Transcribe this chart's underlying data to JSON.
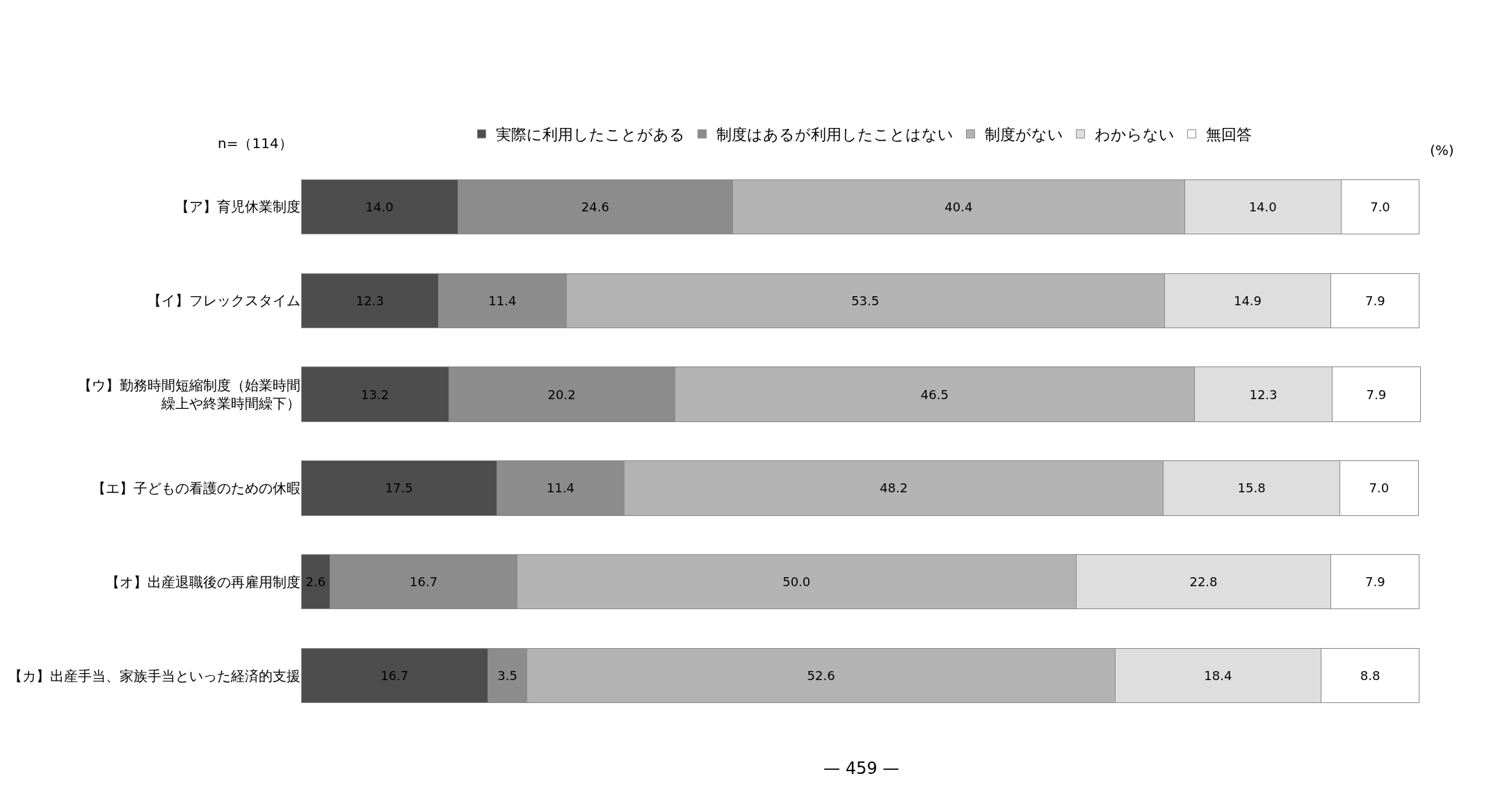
{
  "chart_data": {
    "type": "bar",
    "orientation": "horizontal",
    "stacked": true,
    "legend": "top",
    "tick_labels": "y",
    "xlim": [
      0,
      100.2
    ],
    "categories": [
      "【ア】育児休業制度",
      "【イ】フレックスタイム",
      "【ウ】勤務時間短縮制度（始業時間繰上や終業時間繰下）",
      "【エ】子どもの看護のための休暇",
      "【オ】出産退職後の再雇用制度",
      "【カ】出産手当、家族手当といった経済的支援"
    ],
    "series": [
      {
        "name": "実際に利用したことがある",
        "color": "#4d4d4d",
        "values": [
          14.0,
          12.3,
          13.2,
          17.5,
          2.6,
          16.7
        ],
        "value_labels": [
          "14.0",
          "12.3",
          "13.2",
          "17.5",
          "2.6",
          "16.7"
        ]
      },
      {
        "name": "制度はあるが利用したことはない",
        "color": "#8c8c8c",
        "values": [
          24.6,
          11.4,
          20.2,
          11.4,
          16.7,
          3.5
        ],
        "value_labels": [
          "24.6",
          "11.4",
          "20.2",
          "11.4",
          "16.7",
          "3.5"
        ]
      },
      {
        "name": "制度がない",
        "color": "#b3b3b3",
        "values": [
          40.4,
          53.5,
          46.5,
          48.2,
          50.0,
          52.6
        ],
        "value_labels": [
          "40.4",
          "53.5",
          "46.5",
          "48.2",
          "50.0",
          "52.6"
        ]
      },
      {
        "name": "わからない",
        "color": "#dedede",
        "values": [
          14.0,
          14.9,
          12.3,
          15.8,
          22.8,
          18.4
        ],
        "value_labels": [
          "14.0",
          "14.9",
          "12.3",
          "15.8",
          "22.8",
          "18.4"
        ]
      },
      {
        "name": "無回答",
        "color": "#ffffff",
        "values": [
          7.0,
          7.9,
          7.9,
          7.0,
          7.9,
          8.8
        ],
        "value_labels": [
          "7.0",
          "7.9",
          "7.9",
          "7.0",
          "7.9",
          "8.8"
        ]
      }
    ],
    "annotations": [
      "n=（114）",
      "(%)",
      "— 459 —"
    ]
  }
}
